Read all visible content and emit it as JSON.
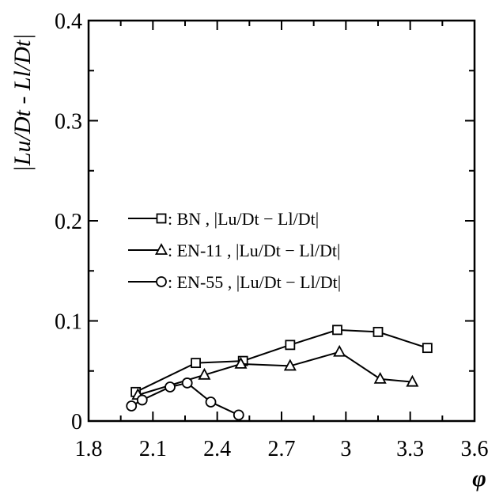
{
  "chart_data": {
    "type": "line",
    "title": "",
    "xlabel": "φ",
    "ylabel": "|Lu/Dt - Ll/Dt|",
    "xlim": [
      1.8,
      3.6
    ],
    "ylim": [
      0,
      0.4
    ],
    "x_ticks": [
      "1.8",
      "2.1",
      "2.4",
      "2.7",
      "3",
      "3.3",
      "3.6"
    ],
    "y_ticks": [
      "0",
      "0.1",
      "0.2",
      "0.3",
      "0.4"
    ],
    "grid": false,
    "legend_position": "center-left",
    "series": [
      {
        "name": ":    BN   , |Lu/Dt − Ll/Dt|",
        "marker": "square",
        "x": [
          2.02,
          2.3,
          2.52,
          2.74,
          2.96,
          3.15,
          3.38
        ],
        "y": [
          0.029,
          0.058,
          0.06,
          0.076,
          0.091,
          0.089,
          0.073
        ]
      },
      {
        "name": ": EN-11 , |Lu/Dt − Ll/Dt|",
        "marker": "triangle",
        "x": [
          2.03,
          2.34,
          2.51,
          2.74,
          2.97,
          3.16,
          3.31
        ],
        "y": [
          0.026,
          0.046,
          0.057,
          0.055,
          0.069,
          0.042,
          0.039
        ]
      },
      {
        "name": ": EN-55 , |Lu/Dt − Ll/Dt|",
        "marker": "circle",
        "x": [
          2.0,
          2.05,
          2.18,
          2.26,
          2.37,
          2.5
        ],
        "y": [
          0.015,
          0.021,
          0.034,
          0.038,
          0.019,
          0.006
        ]
      }
    ]
  }
}
